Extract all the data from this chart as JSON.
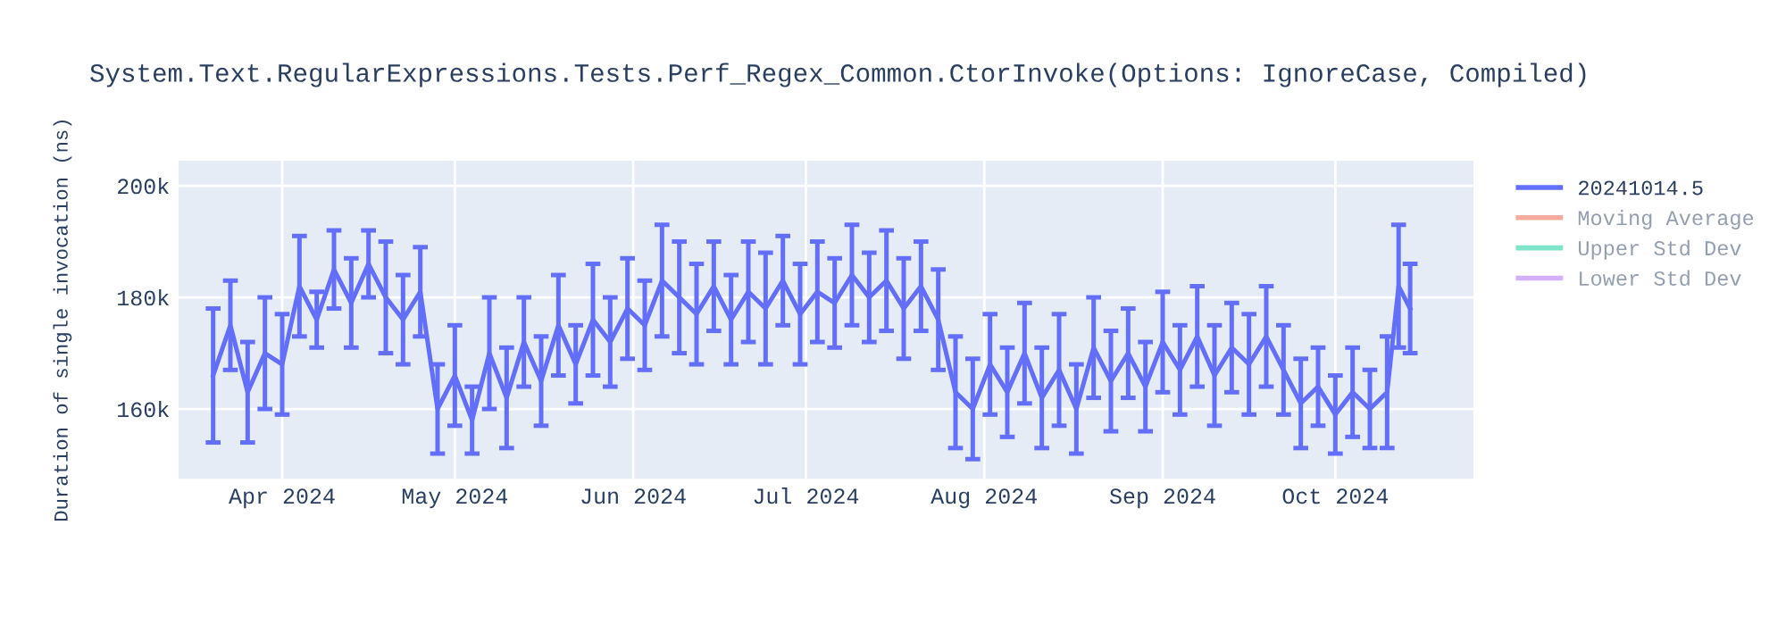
{
  "chart_data": {
    "type": "line",
    "title": "System.Text.RegularExpressions.Tests.Perf_Regex_Common.CtorInvoke(Options: IgnoreCase, Compiled)",
    "ylabel": "Duration of single invocation (ns)",
    "x": [
      "2024-03-20",
      "2024-03-23",
      "2024-03-26",
      "2024-03-29",
      "2024-04-01",
      "2024-04-04",
      "2024-04-07",
      "2024-04-10",
      "2024-04-13",
      "2024-04-16",
      "2024-04-19",
      "2024-04-22",
      "2024-04-25",
      "2024-04-28",
      "2024-05-01",
      "2024-05-04",
      "2024-05-07",
      "2024-05-10",
      "2024-05-13",
      "2024-05-16",
      "2024-05-19",
      "2024-05-22",
      "2024-05-25",
      "2024-05-28",
      "2024-05-31",
      "2024-06-03",
      "2024-06-06",
      "2024-06-09",
      "2024-06-12",
      "2024-06-15",
      "2024-06-18",
      "2024-06-21",
      "2024-06-24",
      "2024-06-27",
      "2024-06-30",
      "2024-07-03",
      "2024-07-06",
      "2024-07-09",
      "2024-07-12",
      "2024-07-15",
      "2024-07-18",
      "2024-07-21",
      "2024-07-24",
      "2024-07-27",
      "2024-07-30",
      "2024-08-02",
      "2024-08-05",
      "2024-08-08",
      "2024-08-11",
      "2024-08-14",
      "2024-08-17",
      "2024-08-20",
      "2024-08-23",
      "2024-08-26",
      "2024-08-29",
      "2024-09-01",
      "2024-09-04",
      "2024-09-07",
      "2024-09-10",
      "2024-09-13",
      "2024-09-16",
      "2024-09-19",
      "2024-09-22",
      "2024-09-25",
      "2024-09-28",
      "2024-10-01",
      "2024-10-04",
      "2024-10-07",
      "2024-10-10",
      "2024-10-12",
      "2024-10-14"
    ],
    "series": [
      {
        "name": "20241014.5",
        "color": "#636efa",
        "values": [
          166000,
          175000,
          163000,
          170000,
          168000,
          182000,
          176000,
          185000,
          179000,
          186000,
          180000,
          176000,
          181000,
          160000,
          166000,
          158000,
          170000,
          162000,
          172000,
          165000,
          175000,
          168000,
          176000,
          172000,
          178000,
          175000,
          183000,
          180000,
          177000,
          182000,
          176000,
          181000,
          178000,
          183000,
          177000,
          181000,
          179000,
          184000,
          180000,
          183000,
          178000,
          182000,
          176000,
          163000,
          160000,
          168000,
          163000,
          170000,
          162000,
          167000,
          160000,
          171000,
          165000,
          170000,
          164000,
          172000,
          167000,
          173000,
          166000,
          171000,
          168000,
          173000,
          167000,
          161000,
          164000,
          159000,
          163000,
          160000,
          163000,
          182000,
          178000
        ],
        "errors": [
          12000,
          8000,
          9000,
          10000,
          9000,
          9000,
          5000,
          7000,
          8000,
          6000,
          10000,
          8000,
          8000,
          8000,
          9000,
          6000,
          10000,
          9000,
          8000,
          8000,
          9000,
          7000,
          10000,
          8000,
          9000,
          8000,
          10000,
          10000,
          9000,
          8000,
          8000,
          9000,
          10000,
          8000,
          9000,
          9000,
          8000,
          9000,
          8000,
          9000,
          9000,
          8000,
          9000,
          10000,
          9000,
          9000,
          8000,
          9000,
          9000,
          10000,
          8000,
          9000,
          9000,
          8000,
          8000,
          9000,
          8000,
          9000,
          9000,
          8000,
          9000,
          9000,
          8000,
          8000,
          7000,
          7000,
          8000,
          7000,
          10000,
          11000,
          8000
        ]
      },
      {
        "name": "Moving Average",
        "color": "#ef553b",
        "values": [
          null,
          null,
          null,
          null,
          null,
          null,
          null,
          null,
          null,
          null,
          null,
          null,
          null,
          null,
          null,
          null,
          null,
          null,
          null,
          null,
          null,
          null,
          null,
          null,
          null,
          null,
          null,
          null,
          null,
          null,
          null,
          null,
          null,
          null,
          null,
          null,
          null,
          null,
          null,
          null,
          null,
          null,
          null,
          null,
          null,
          null,
          null,
          null,
          null,
          null,
          null,
          null,
          null,
          null,
          null,
          null,
          null,
          null,
          null,
          null,
          null,
          null,
          null,
          null,
          null,
          null,
          null,
          null,
          null,
          null,
          null
        ]
      },
      {
        "name": "Upper Std Dev",
        "color": "#00cc96",
        "values": [
          null,
          null,
          null,
          null,
          null,
          null,
          null,
          null,
          null,
          null,
          null,
          null,
          null,
          null,
          null,
          null,
          null,
          null,
          null,
          null,
          null,
          null,
          null,
          null,
          null,
          null,
          null,
          null,
          null,
          null,
          null,
          null,
          null,
          null,
          null,
          null,
          null,
          null,
          null,
          null,
          null,
          null,
          null,
          null,
          null,
          null,
          null,
          null,
          null,
          null,
          null,
          null,
          null,
          null,
          null,
          null,
          null,
          null,
          null,
          null,
          null,
          null,
          null,
          null,
          null,
          null,
          null,
          null,
          null,
          null,
          null
        ]
      },
      {
        "name": "Lower Std Dev",
        "color": "#ab63fa",
        "values": [
          null,
          null,
          null,
          null,
          null,
          null,
          null,
          null,
          null,
          null,
          null,
          null,
          null,
          null,
          null,
          null,
          null,
          null,
          null,
          null,
          null,
          null,
          null,
          null,
          null,
          null,
          null,
          null,
          null,
          null,
          null,
          null,
          null,
          null,
          null,
          null,
          null,
          null,
          null,
          null,
          null,
          null,
          null,
          null,
          null,
          null,
          null,
          null,
          null,
          null,
          null,
          null,
          null,
          null,
          null,
          null,
          null,
          null,
          null,
          null,
          null,
          null,
          null,
          null,
          null,
          null,
          null,
          null,
          null,
          null,
          null
        ]
      }
    ],
    "xlim": [
      "2024-03-14",
      "2024-10-25"
    ],
    "xticks": [
      {
        "value": "2024-04-01",
        "label": "Apr 2024"
      },
      {
        "value": "2024-05-01",
        "label": "May 2024"
      },
      {
        "value": "2024-06-01",
        "label": "Jun 2024"
      },
      {
        "value": "2024-07-01",
        "label": "Jul 2024"
      },
      {
        "value": "2024-08-01",
        "label": "Aug 2024"
      },
      {
        "value": "2024-09-01",
        "label": "Sep 2024"
      },
      {
        "value": "2024-10-01",
        "label": "Oct 2024"
      }
    ],
    "ylim": [
      147500,
      204500
    ],
    "yticks": [
      {
        "value": 160000,
        "label": "160k"
      },
      {
        "value": 180000,
        "label": "180k"
      },
      {
        "value": 200000,
        "label": "200k"
      }
    ],
    "grid": true,
    "legend": "right",
    "marker": "none",
    "line_style": "solid"
  }
}
